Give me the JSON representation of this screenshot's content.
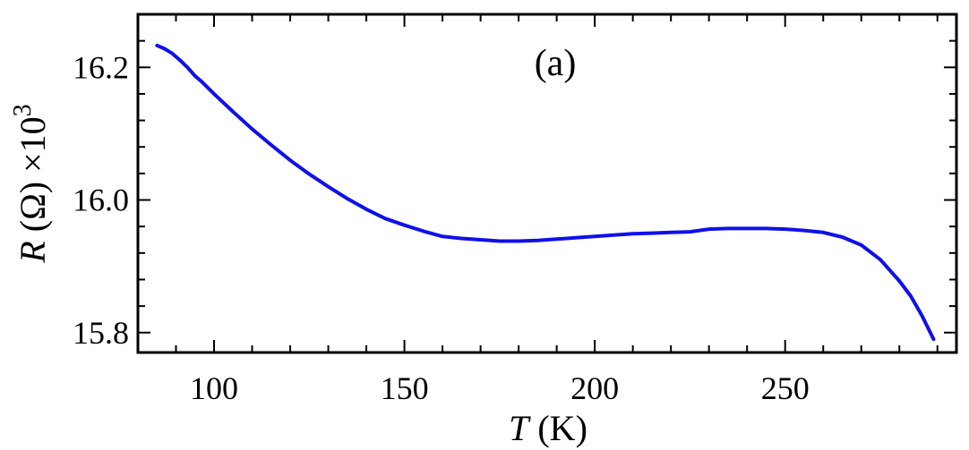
{
  "chart_data": {
    "type": "line",
    "title": "",
    "panel_label": "(a)",
    "xlabel_var": "T",
    "xlabel_unit": " (K)",
    "ylabel_var": "R",
    "ylabel_unit": " (Ω) ×10",
    "ylabel_exp": "3",
    "xlim": [
      80,
      295
    ],
    "ylim": [
      15.77,
      16.28
    ],
    "x_ticks": [
      100,
      150,
      200,
      250
    ],
    "x_tick_labels": [
      "100",
      "150",
      "200",
      "250"
    ],
    "y_ticks": [
      15.8,
      16.0,
      16.2
    ],
    "y_tick_labels": [
      "15.8",
      "16.0",
      "16.2"
    ],
    "grid": false,
    "series": [
      {
        "color": "#1010e8",
        "x": [
          85,
          87,
          89,
          91,
          93,
          95,
          97,
          100,
          105,
          110,
          115,
          120,
          125,
          130,
          135,
          140,
          145,
          150,
          155,
          160,
          165,
          170,
          175,
          180,
          185,
          190,
          195,
          200,
          205,
          210,
          215,
          220,
          225,
          230,
          235,
          240,
          245,
          250,
          255,
          260,
          265,
          270,
          275,
          280,
          283,
          286,
          289
        ],
        "y": [
          16.233,
          16.228,
          16.221,
          16.211,
          16.2,
          16.187,
          16.177,
          16.16,
          16.133,
          16.107,
          16.083,
          16.06,
          16.039,
          16.02,
          16.002,
          15.986,
          15.972,
          15.962,
          15.953,
          15.945,
          15.942,
          15.94,
          15.938,
          15.938,
          15.939,
          15.941,
          15.943,
          15.945,
          15.947,
          15.949,
          15.95,
          15.951,
          15.952,
          15.956,
          15.957,
          15.957,
          15.957,
          15.956,
          15.954,
          15.951,
          15.944,
          15.932,
          15.91,
          15.878,
          15.855,
          15.825,
          15.79
        ]
      }
    ]
  }
}
